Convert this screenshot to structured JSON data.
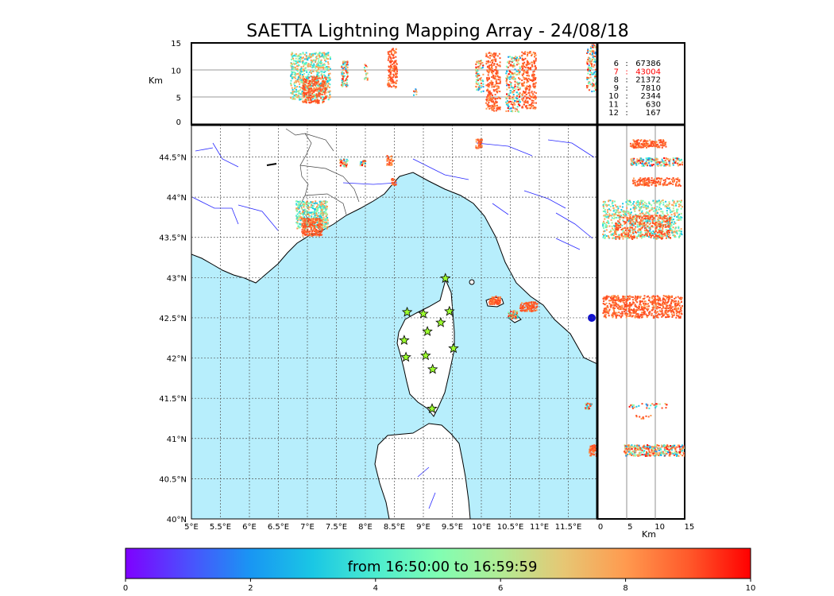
{
  "title": "SAETTA Lightning Mapping Array - 24/08/18",
  "colors": {
    "sea": "#b7eefc",
    "land": "#ffffff",
    "coast": "#000000",
    "river": "#2828ff",
    "grid": "#555555",
    "highlight": "#ff0000"
  },
  "top_panel": {
    "y_label": "Km",
    "y_ticks": [
      "0",
      "5",
      "10",
      "15"
    ]
  },
  "side_panel": {
    "x_label": "Km",
    "x_ticks": [
      "0",
      "5",
      "10",
      "15"
    ]
  },
  "map": {
    "lon_ticks": [
      "5°E",
      "5.5°E",
      "6°E",
      "6.5°E",
      "7°E",
      "7.5°E",
      "8°E",
      "8.5°E",
      "9°E",
      "9.5°E",
      "10°E",
      "10.5°E",
      "11°E",
      "11.5°E"
    ],
    "lat_ticks": [
      "40°N",
      "40.5°N",
      "41°N",
      "41.5°N",
      "42°N",
      "42.5°N",
      "43°N",
      "43.5°N",
      "44°N",
      "44.5°N"
    ],
    "lon_range": [
      5,
      12
    ],
    "lat_range": [
      40,
      44.9
    ]
  },
  "stats": [
    {
      "stations": "6",
      "count": "67386",
      "highlight": false
    },
    {
      "stations": "7",
      "count": "43004",
      "highlight": true
    },
    {
      "stations": "8",
      "count": "21372",
      "highlight": false
    },
    {
      "stations": "9",
      "count": "7810",
      "highlight": false
    },
    {
      "stations": "10",
      "count": "2344",
      "highlight": false
    },
    {
      "stations": "11",
      "count": "630",
      "highlight": false
    },
    {
      "stations": "12",
      "count": "167",
      "highlight": false
    }
  ],
  "stations": [
    {
      "lon": 9.38,
      "lat": 42.99
    },
    {
      "lon": 8.72,
      "lat": 42.57
    },
    {
      "lon": 9.0,
      "lat": 42.55
    },
    {
      "lon": 9.45,
      "lat": 42.58
    },
    {
      "lon": 9.3,
      "lat": 42.44
    },
    {
      "lon": 9.07,
      "lat": 42.33
    },
    {
      "lon": 8.67,
      "lat": 42.22
    },
    {
      "lon": 9.52,
      "lat": 42.12
    },
    {
      "lon": 8.7,
      "lat": 42.01
    },
    {
      "lon": 9.04,
      "lat": 42.03
    },
    {
      "lon": 9.16,
      "lat": 41.86
    },
    {
      "lon": 9.15,
      "lat": 41.37
    }
  ],
  "colorbar": {
    "label": "from 16:50:00 to 16:59:59",
    "ticks": [
      "0",
      "2",
      "4",
      "6",
      "8",
      "10"
    ],
    "range": [
      0,
      10
    ]
  }
}
